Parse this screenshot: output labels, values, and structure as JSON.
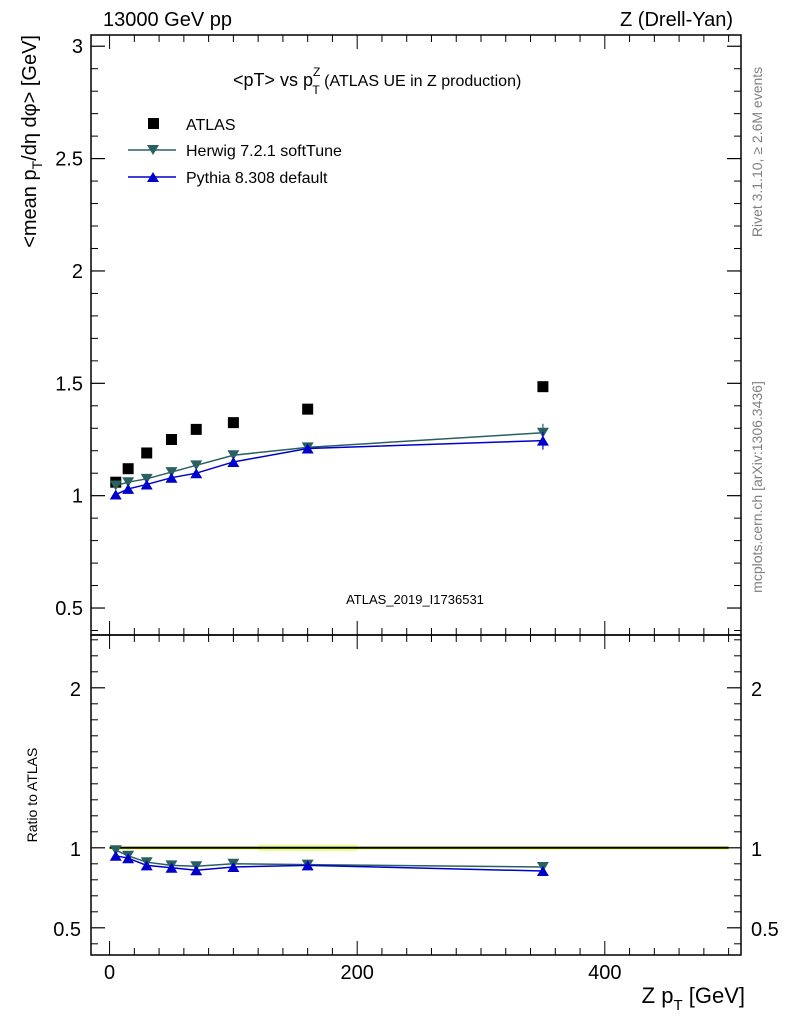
{
  "header": {
    "left": "13000 GeV pp",
    "right": "Z (Drell-Yan)"
  },
  "side_labels": {
    "rivet": "Rivet 3.1.10, ≥ 2.6M events",
    "mcplots": "mcplots.cern.ch [arXiv:1306.3436]"
  },
  "watermark": "ATLAS_2019_I1736531",
  "chart_data": [
    {
      "type": "scatter",
      "panel": "main",
      "title_main": "<pT> vs p",
      "title_sup": "Z",
      "title_sub": "T",
      "title_rest": " (ATLAS UE in Z production)",
      "ylabel_pre": "<mean p",
      "ylabel_sub": "T",
      "ylabel_post": "/dη dφ> [GeV]",
      "ylim": [
        0.38,
        3.05
      ],
      "xlim": [
        -15,
        510
      ],
      "yticks": [
        0.5,
        1,
        1.5,
        2,
        2.5,
        3
      ],
      "ytick_labels": [
        "0.5",
        "1",
        "1.5",
        "2",
        "2.5",
        "3"
      ],
      "legend_position": "top-left",
      "series": [
        {
          "name": "ATLAS",
          "marker": "square",
          "color": "#000000",
          "x": [
            5,
            15,
            30,
            50,
            70,
            100,
            160,
            350
          ],
          "y": [
            1.06,
            1.12,
            1.19,
            1.25,
            1.295,
            1.325,
            1.385,
            1.485
          ]
        },
        {
          "name": "Herwig 7.2.1 softTune",
          "marker": "triangle-down",
          "color": "#2a6060",
          "x": [
            5,
            15,
            30,
            50,
            70,
            100,
            160,
            350
          ],
          "y": [
            1.045,
            1.06,
            1.075,
            1.105,
            1.135,
            1.18,
            1.215,
            1.28
          ],
          "err": [
            0.01,
            0.01,
            0.01,
            0.01,
            0.01,
            0.01,
            0.01,
            0.04
          ]
        },
        {
          "name": "Pythia 8.308 default",
          "marker": "triangle-up",
          "color": "#0000cc",
          "x": [
            5,
            15,
            30,
            50,
            70,
            100,
            160,
            350
          ],
          "y": [
            1.005,
            1.03,
            1.05,
            1.08,
            1.1,
            1.15,
            1.21,
            1.245
          ],
          "err": [
            0.01,
            0.01,
            0.01,
            0.01,
            0.01,
            0.01,
            0.01,
            0.04
          ]
        }
      ]
    },
    {
      "type": "line",
      "panel": "ratio",
      "ylabel": "Ratio to ATLAS",
      "xlabel_pre": "Z p",
      "xlabel_sub": "T",
      "xlabel_post": " [GeV]",
      "ylim": [
        0.33,
        2.33
      ],
      "xlim": [
        -15,
        510
      ],
      "yticks": [
        0.5,
        1,
        2
      ],
      "ytick_labels": [
        "0.5",
        "1",
        "2"
      ],
      "xticks": [
        0,
        200,
        400
      ],
      "xtick_labels": [
        "0",
        "200",
        "400"
      ],
      "reference": 1,
      "series": [
        {
          "name": "Herwig 7.2.1 softTune",
          "marker": "triangle-down",
          "color": "#2a6060",
          "x": [
            5,
            15,
            30,
            50,
            70,
            100,
            160,
            350
          ],
          "y": [
            0.985,
            0.95,
            0.91,
            0.89,
            0.885,
            0.9,
            0.895,
            0.88
          ]
        },
        {
          "name": "Pythia 8.308 default",
          "marker": "triangle-up",
          "color": "#0000cc",
          "x": [
            5,
            15,
            30,
            50,
            70,
            100,
            160,
            350
          ],
          "y": [
            0.95,
            0.935,
            0.89,
            0.875,
            0.86,
            0.88,
            0.89,
            0.855
          ]
        }
      ]
    }
  ]
}
